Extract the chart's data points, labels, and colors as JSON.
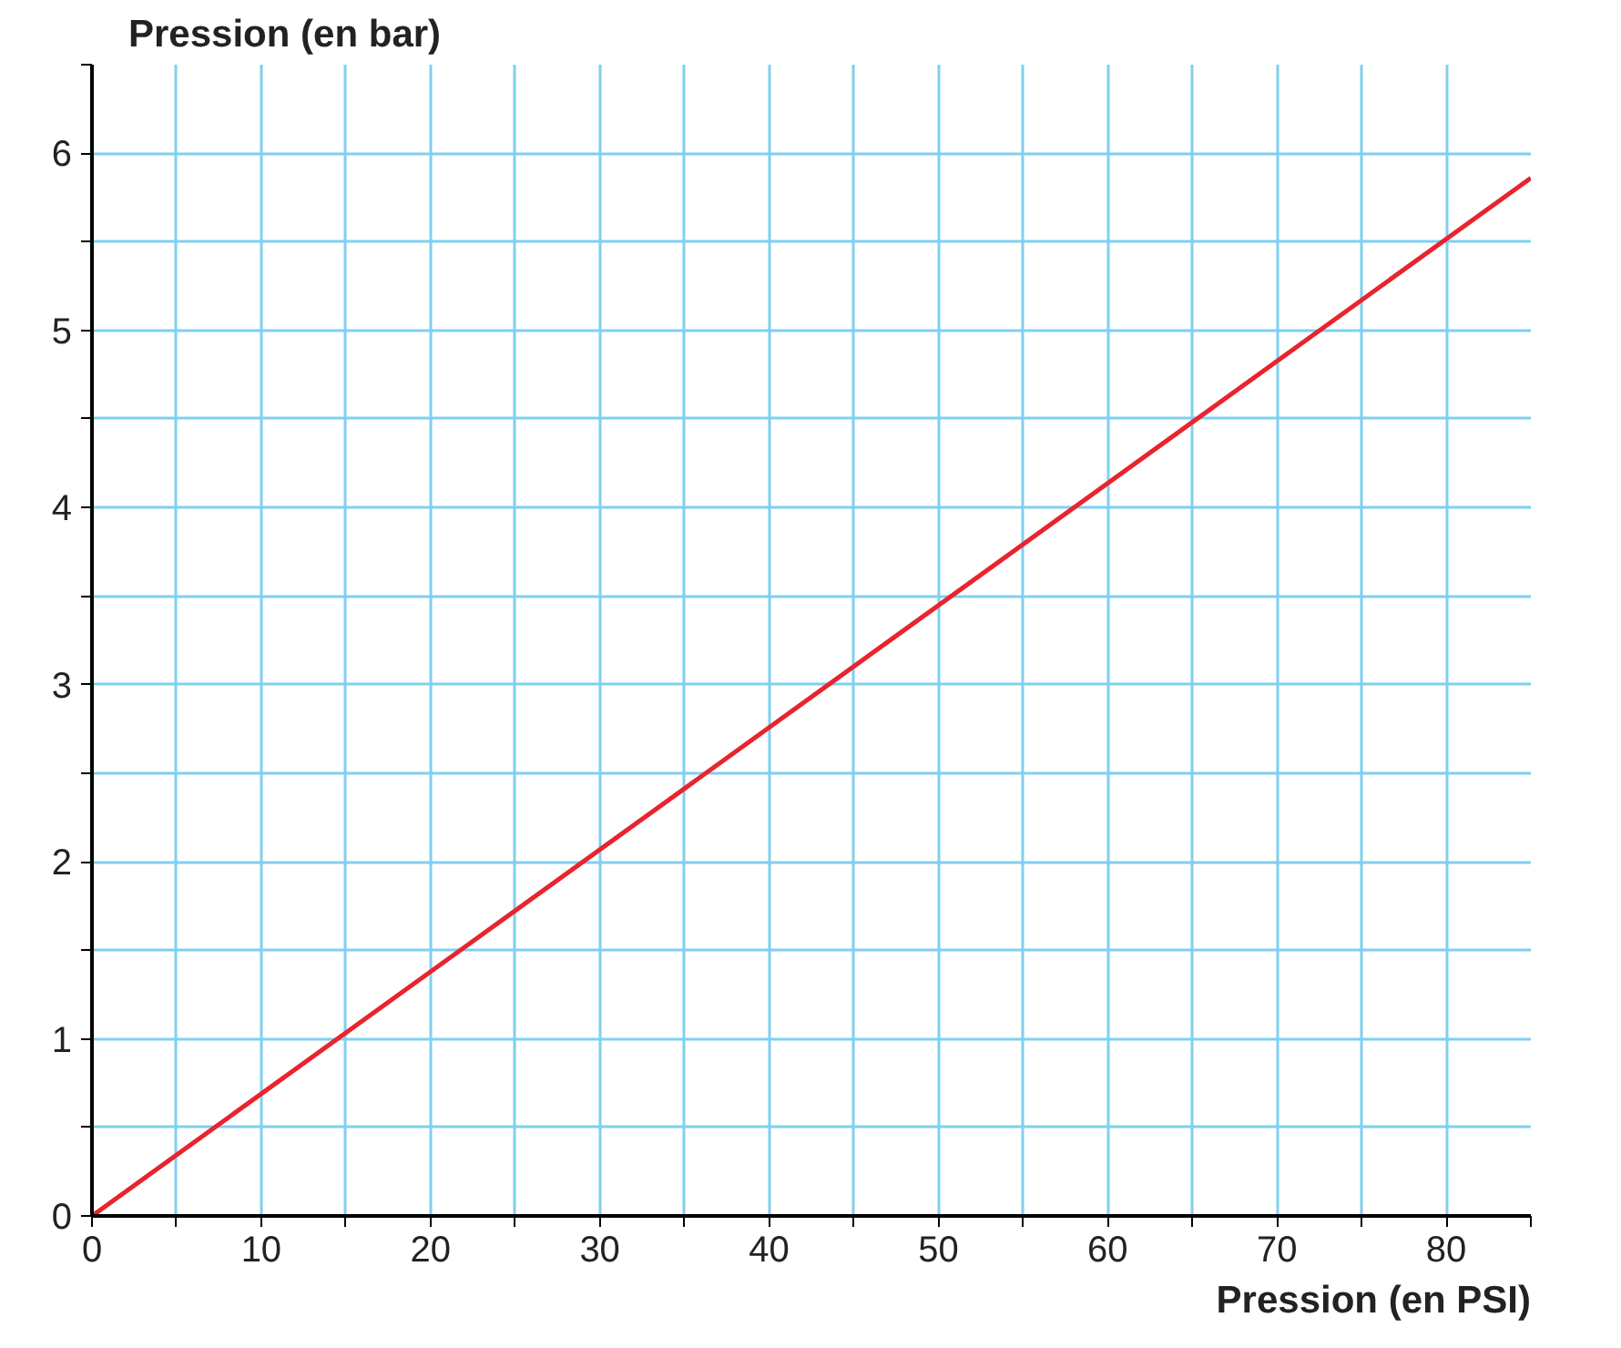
{
  "chart_data": {
    "type": "line",
    "xlabel": "Pression (en PSI)",
    "ylabel": "Pression (en bar)",
    "x": [
      0,
      85
    ],
    "series": [
      {
        "color": "#e8242f",
        "values": [
          0,
          5.86
        ]
      }
    ],
    "xlim": [
      0,
      85
    ],
    "ylim": [
      0,
      6.5
    ],
    "xticks": [
      0,
      {
        "value": 5,
        "label": null
      },
      10,
      {
        "value": 15,
        "label": null
      },
      20,
      {
        "value": 25,
        "label": null
      },
      30,
      {
        "value": 35,
        "label": null
      },
      40,
      {
        "value": 45,
        "label": null
      },
      50,
      {
        "value": 55,
        "label": null
      },
      60,
      {
        "value": 65,
        "label": null
      },
      70,
      {
        "value": 75,
        "label": null
      },
      80,
      {
        "value": 85,
        "label": null
      }
    ],
    "yticks": [
      0,
      {
        "value": 0.5,
        "label": null
      },
      1,
      {
        "value": 1.5,
        "label": null
      },
      2,
      {
        "value": 2.5,
        "label": null
      },
      3,
      {
        "value": 3.5,
        "label": null
      },
      4,
      {
        "value": 4.5,
        "label": null
      },
      5,
      {
        "value": 5.5,
        "label": null
      },
      6,
      {
        "value": 6.5,
        "label": null
      }
    ],
    "grid": true,
    "marker": "none",
    "line_style": "solid"
  }
}
